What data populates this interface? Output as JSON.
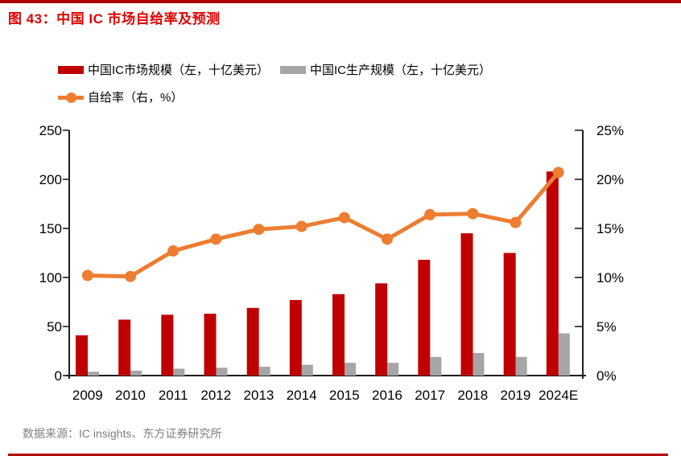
{
  "header": {
    "title": "图 43：中国 IC 市场自给率及预测"
  },
  "palette": {
    "title_red": "#E00000",
    "rule_red": "#AE0000",
    "bar_red": "#C00000",
    "bar_gray": "#A6A6A6",
    "line_orange": "#ED7D31",
    "axis_black": "#1F1F1F",
    "source_gray": "#7F7F7F"
  },
  "legend": [
    {
      "label": "中国IC市场规模（左，十亿美元）",
      "swatch": "bar",
      "color": "#C00000"
    },
    {
      "label": "中国IC生产规模（左，十亿美元）",
      "swatch": "bar",
      "color": "#A6A6A6"
    },
    {
      "label": "自给率（右，%）",
      "swatch": "line-marker",
      "color": "#ED7D31"
    }
  ],
  "chart_data": {
    "type": "bar+line",
    "title": "中国IC市场自给率及预测",
    "categories": [
      "2009",
      "2010",
      "2011",
      "2012",
      "2013",
      "2014",
      "2015",
      "2016",
      "2017",
      "2018",
      "2019",
      "2024E"
    ],
    "series": [
      {
        "name": "中国IC市场规模（左，十亿美元）",
        "type": "bar",
        "axis": "left",
        "color": "#C00000",
        "values": [
          41,
          57,
          62,
          63,
          69,
          77,
          83,
          94,
          118,
          145,
          125,
          208
        ]
      },
      {
        "name": "中国IC生产规模（左，十亿美元）",
        "type": "bar",
        "axis": "left",
        "color": "#A6A6A6",
        "values": [
          4,
          5,
          7,
          8,
          9,
          11,
          13,
          13,
          19,
          23,
          19,
          43
        ]
      },
      {
        "name": "自给率（右，%）",
        "type": "line",
        "axis": "right",
        "color": "#ED7D31",
        "values": [
          10.2,
          10.1,
          12.7,
          13.9,
          14.9,
          15.2,
          16.1,
          13.9,
          16.4,
          16.5,
          15.6,
          20.7
        ]
      }
    ],
    "left_axis": {
      "min": 0,
      "max": 250,
      "ticks": [
        "0",
        "50",
        "100",
        "150",
        "200",
        "250"
      ]
    },
    "right_axis": {
      "min": 0,
      "max": 25,
      "ticks": [
        "0%",
        "5%",
        "10%",
        "15%",
        "20%",
        "25%"
      ]
    },
    "grid": false,
    "legend_position": "top-left"
  },
  "footer": {
    "source": "数据来源：IC insights、东方证券研究所"
  }
}
